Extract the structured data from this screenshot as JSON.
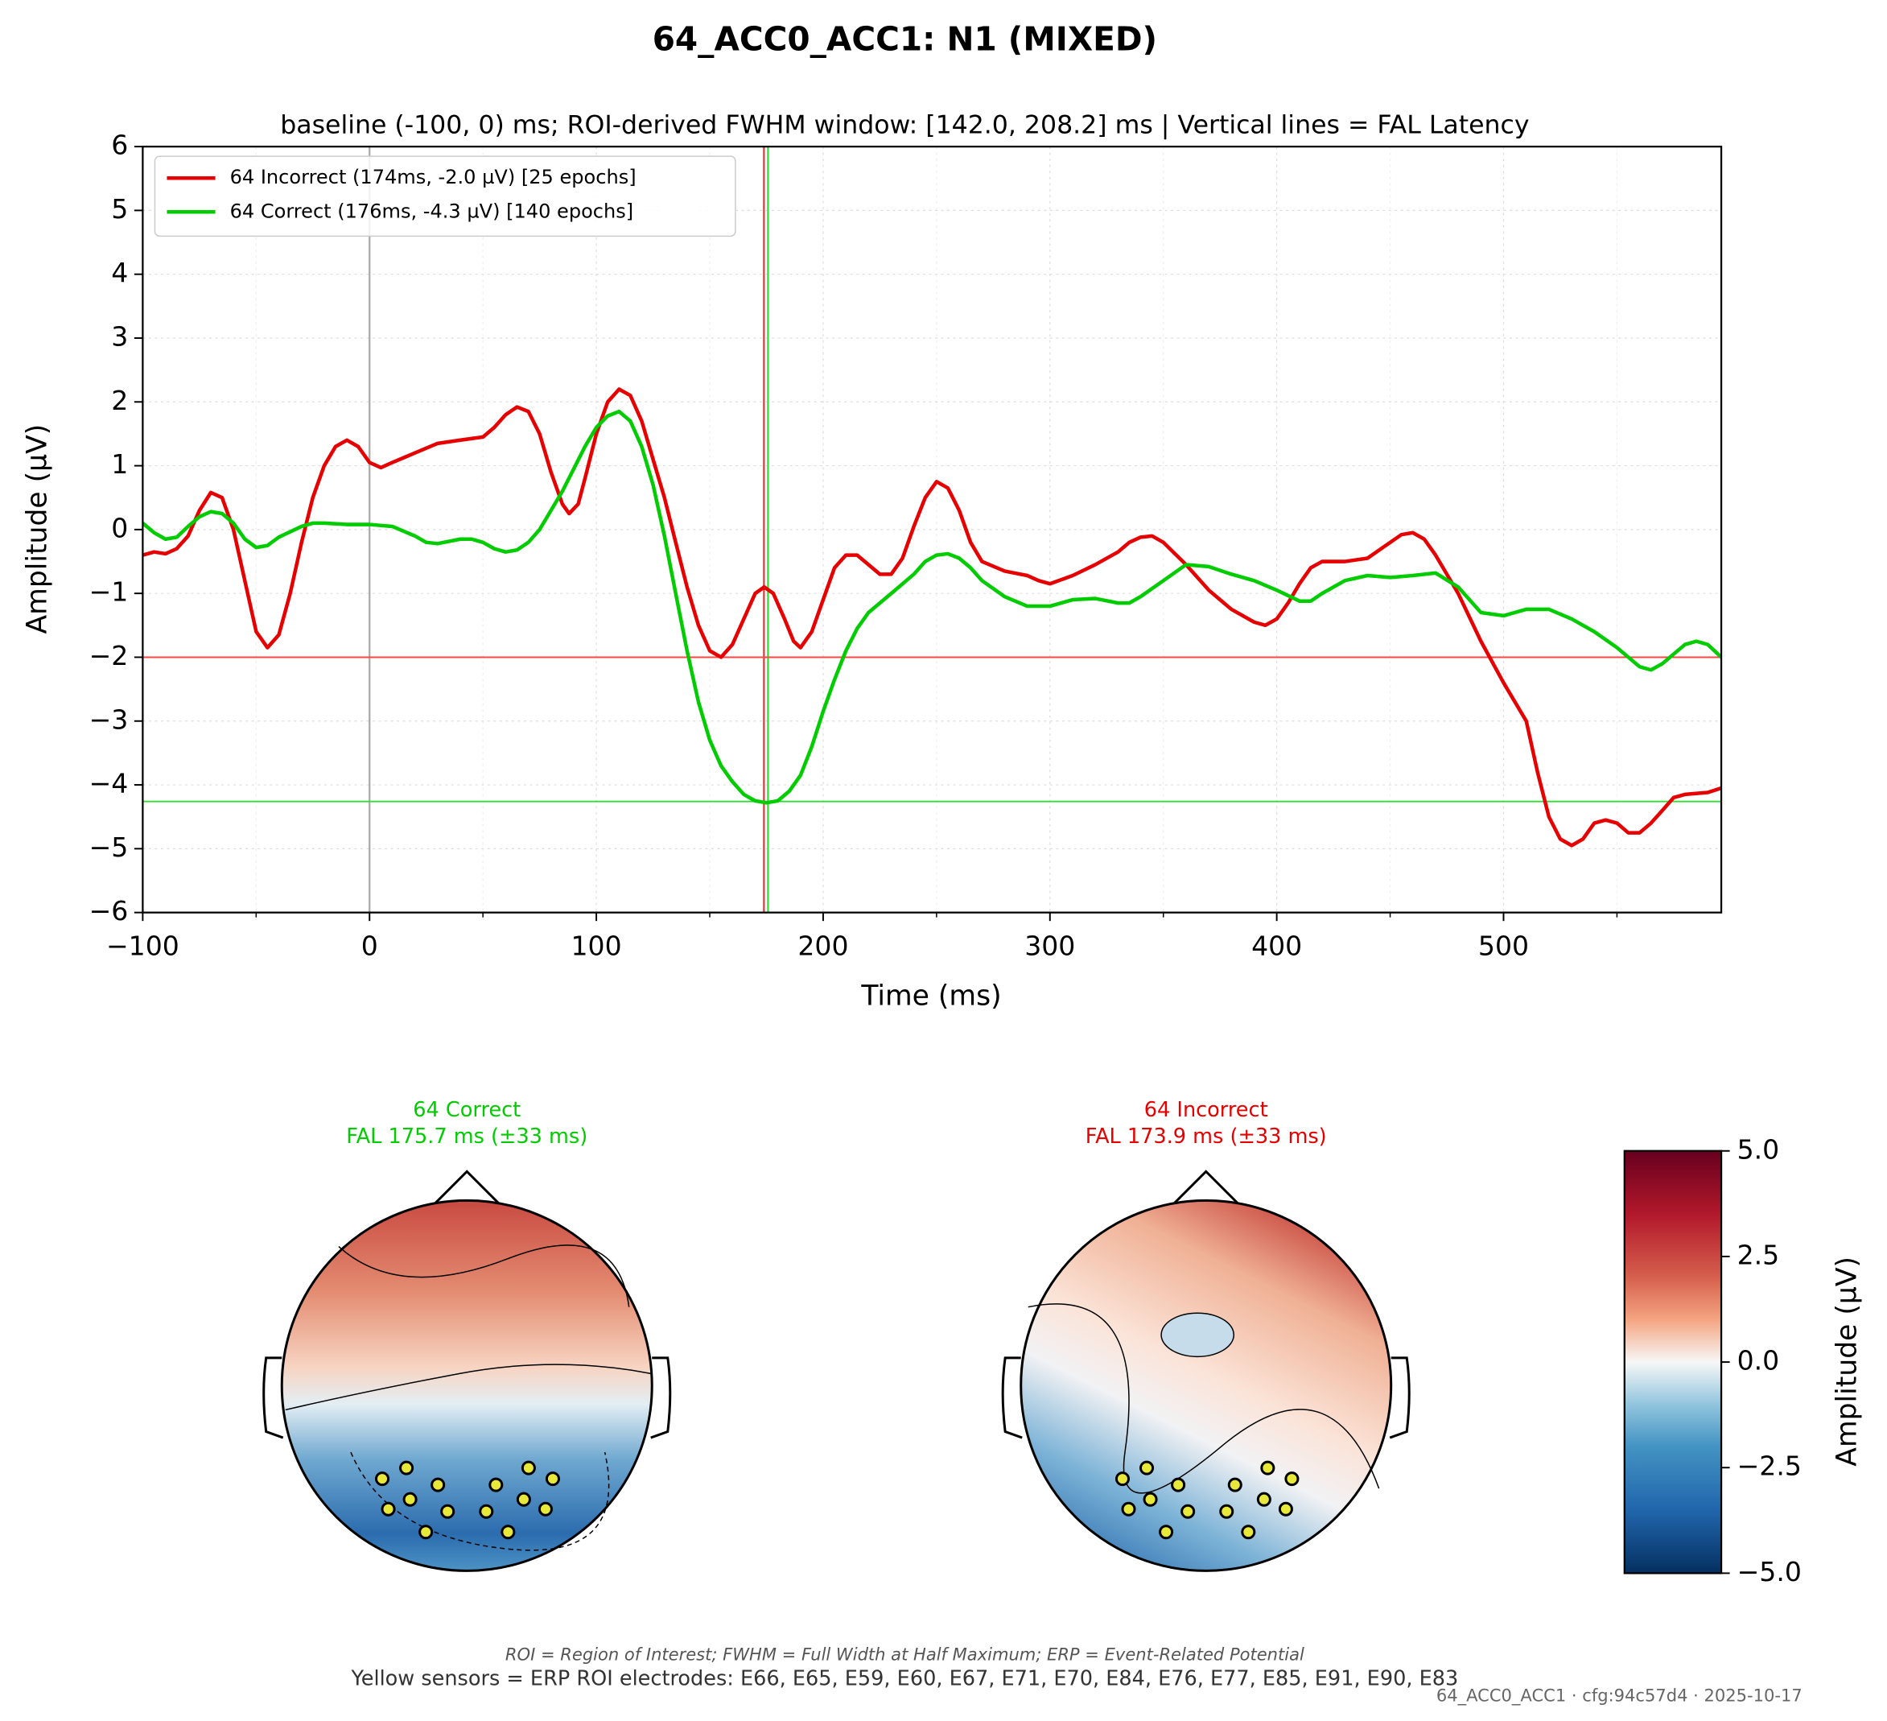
{
  "chart_data": {
    "type": "line",
    "title": "64_ACC0_ACC1: N1 (MIXED)",
    "subtitle": "baseline (-100, 0) ms; ROI-derived FWHM window: [142.0, 208.2] ms | Vertical lines = FAL Latency",
    "x_label": "Time (ms)",
    "y_label": "Amplitude (µV)",
    "xlim": [
      -100,
      596
    ],
    "ylim": [
      -6,
      6
    ],
    "xticks": [
      {
        "value": -100,
        "label": "−100"
      },
      0,
      100,
      200,
      300,
      400,
      500
    ],
    "xminorticks": [
      -50,
      50,
      150,
      250,
      350,
      450,
      550
    ],
    "yticks": [
      {
        "value": -6,
        "label": "−6"
      },
      {
        "value": -5,
        "label": "−5"
      },
      {
        "value": -4,
        "label": "−4"
      },
      {
        "value": -3,
        "label": "−3"
      },
      {
        "value": -2,
        "label": "−2"
      },
      {
        "value": -1,
        "label": "−1"
      },
      0,
      1,
      2,
      3,
      4,
      5,
      6
    ],
    "grid": true,
    "legend": "upper left",
    "series": [
      {
        "name": "64 Incorrect (174ms, -2.0 µV) [25 epochs]",
        "color": "#e60000",
        "x": [
          -100,
          -95,
          -90,
          -85,
          -80,
          -75,
          -70,
          -65,
          -60,
          -55,
          -50,
          -45,
          -40,
          -35,
          -30,
          -25,
          -20,
          -15,
          -10,
          -5,
          0,
          5,
          10,
          20,
          30,
          40,
          50,
          55,
          60,
          65,
          70,
          75,
          80,
          85,
          88,
          92,
          95,
          100,
          105,
          110,
          115,
          120,
          125,
          130,
          135,
          140,
          145,
          150,
          155,
          160,
          165,
          170,
          174,
          178,
          183,
          187,
          190,
          195,
          200,
          205,
          210,
          215,
          220,
          225,
          230,
          235,
          240,
          245,
          250,
          255,
          260,
          265,
          270,
          280,
          290,
          295,
          300,
          310,
          320,
          330,
          335,
          340,
          345,
          350,
          360,
          370,
          380,
          390,
          395,
          400,
          405,
          410,
          415,
          420,
          430,
          440,
          450,
          455,
          460,
          465,
          470,
          480,
          490,
          500,
          510,
          515,
          520,
          525,
          530,
          535,
          540,
          545,
          550,
          555,
          560,
          565,
          570,
          575,
          580,
          590,
          596
        ],
        "values": [
          -0.4,
          -0.35,
          -0.38,
          -0.3,
          -0.1,
          0.3,
          0.58,
          0.5,
          0,
          -0.8,
          -1.6,
          -1.85,
          -1.65,
          -1.0,
          -0.2,
          0.5,
          1.0,
          1.3,
          1.4,
          1.3,
          1.05,
          0.97,
          1.05,
          1.2,
          1.35,
          1.4,
          1.45,
          1.6,
          1.8,
          1.92,
          1.85,
          1.5,
          0.9,
          0.4,
          0.25,
          0.4,
          0.8,
          1.5,
          2.0,
          2.2,
          2.1,
          1.7,
          1.1,
          0.5,
          -0.2,
          -0.9,
          -1.5,
          -1.9,
          -2.0,
          -1.8,
          -1.4,
          -1.0,
          -0.9,
          -1.0,
          -1.4,
          -1.75,
          -1.85,
          -1.6,
          -1.1,
          -0.6,
          -0.4,
          -0.4,
          -0.55,
          -0.7,
          -0.7,
          -0.45,
          0.05,
          0.5,
          0.75,
          0.65,
          0.3,
          -0.2,
          -0.5,
          -0.65,
          -0.72,
          -0.8,
          -0.85,
          -0.72,
          -0.55,
          -0.35,
          -0.2,
          -0.12,
          -0.1,
          -0.2,
          -0.55,
          -0.95,
          -1.25,
          -1.45,
          -1.5,
          -1.4,
          -1.15,
          -0.85,
          -0.6,
          -0.5,
          -0.5,
          -0.45,
          -0.2,
          -0.08,
          -0.05,
          -0.15,
          -0.4,
          -1.0,
          -1.75,
          -2.4,
          -3.0,
          -3.8,
          -4.5,
          -4.85,
          -4.95,
          -4.85,
          -4.6,
          -4.55,
          -4.6,
          -4.75,
          -4.75,
          -4.6,
          -4.4,
          -4.2,
          -4.15,
          -4.12,
          -4.05
        ]
      },
      {
        "name": "64 Correct (176ms, -4.3 µV) [140 epochs]",
        "color": "#00cc00",
        "x": [
          -100,
          -95,
          -90,
          -85,
          -80,
          -75,
          -70,
          -65,
          -60,
          -55,
          -50,
          -45,
          -40,
          -30,
          -25,
          -20,
          -10,
          0,
          10,
          20,
          25,
          30,
          40,
          45,
          50,
          55,
          60,
          65,
          70,
          75,
          80,
          85,
          90,
          95,
          100,
          105,
          110,
          115,
          120,
          125,
          130,
          135,
          140,
          145,
          150,
          155,
          160,
          165,
          170,
          175,
          180,
          185,
          190,
          195,
          200,
          205,
          210,
          215,
          220,
          230,
          240,
          245,
          250,
          255,
          260,
          265,
          270,
          280,
          290,
          300,
          310,
          320,
          330,
          335,
          340,
          350,
          360,
          370,
          380,
          390,
          400,
          410,
          415,
          420,
          430,
          440,
          450,
          460,
          470,
          480,
          490,
          500,
          510,
          520,
          530,
          540,
          550,
          560,
          565,
          570,
          580,
          585,
          590,
          596
        ],
        "values": [
          0.1,
          -0.05,
          -0.15,
          -0.12,
          0.05,
          0.2,
          0.28,
          0.25,
          0.1,
          -0.15,
          -0.28,
          -0.25,
          -0.12,
          0.05,
          0.1,
          0.1,
          0.08,
          0.08,
          0.05,
          -0.1,
          -0.2,
          -0.22,
          -0.15,
          -0.15,
          -0.2,
          -0.3,
          -0.35,
          -0.32,
          -0.2,
          0.0,
          0.3,
          0.6,
          0.95,
          1.3,
          1.6,
          1.78,
          1.85,
          1.7,
          1.3,
          0.7,
          -0.1,
          -1.0,
          -1.9,
          -2.7,
          -3.3,
          -3.7,
          -3.95,
          -4.15,
          -4.25,
          -4.28,
          -4.25,
          -4.1,
          -3.85,
          -3.4,
          -2.85,
          -2.35,
          -1.9,
          -1.55,
          -1.3,
          -1.0,
          -0.7,
          -0.5,
          -0.4,
          -0.38,
          -0.45,
          -0.6,
          -0.8,
          -1.05,
          -1.2,
          -1.2,
          -1.1,
          -1.08,
          -1.15,
          -1.15,
          -1.05,
          -0.8,
          -0.55,
          -0.58,
          -0.7,
          -0.8,
          -0.95,
          -1.12,
          -1.12,
          -1.0,
          -0.8,
          -0.72,
          -0.75,
          -0.72,
          -0.68,
          -0.9,
          -1.3,
          -1.35,
          -1.25,
          -1.25,
          -1.4,
          -1.6,
          -1.85,
          -2.15,
          -2.2,
          -2.1,
          -1.8,
          -1.75,
          -1.8,
          -2.0
        ]
      }
    ],
    "hlines": [
      {
        "value": -2.0,
        "color": "#ff4444"
      },
      {
        "value": -4.26,
        "color": "#33dd33"
      }
    ],
    "vlines": [
      {
        "value": 0,
        "color": "#aaaaaa"
      },
      {
        "value": 173.9,
        "color": "#d04040"
      },
      {
        "value": 175.7,
        "color": "#33dd33"
      }
    ],
    "topomaps": [
      {
        "title": "64 Correct\nFAL 175.7 ms (±33 ms)",
        "color": "#00cc00"
      },
      {
        "title": "64 Incorrect\nFAL 173.9 ms (±33 ms)",
        "color": "#e60000"
      }
    ],
    "colorbar": {
      "label": "Amplitude (µV)",
      "lim": [
        -5,
        5
      ],
      "ticks": [
        {
          "value": 5,
          "label": "5.0"
        },
        {
          "value": 2.5,
          "label": "2.5"
        },
        {
          "value": 0,
          "label": "0.0"
        },
        {
          "value": -2.5,
          "label": "−2.5"
        },
        {
          "value": -5,
          "label": "−5.0"
        }
      ]
    },
    "footnote": "ROI = Region of Interest; FWHM = Full Width at Half Maximum; ERP = Event-Related Potential",
    "caption": "Yellow sensors = ERP ROI electrodes: E66, E65, E59, E60, E67, E71, E70, E84, E76, E77, E85, E91, E90, E83",
    "stamp": "64_ACC0_ACC1 · cfg:94c57d4 · 2025-10-17"
  }
}
